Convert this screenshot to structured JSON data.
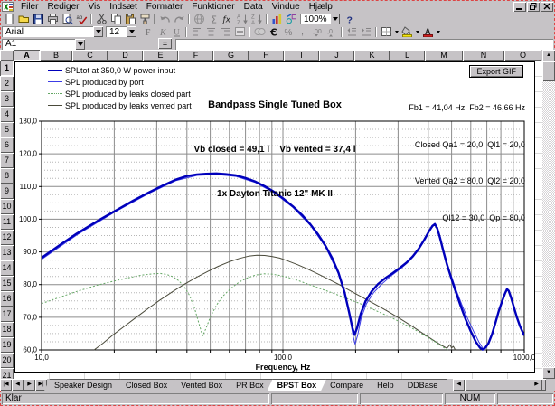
{
  "menu": {
    "items": [
      "Filer",
      "Rediger",
      "Vis",
      "Indsæt",
      "Formater",
      "Funktioner",
      "Data",
      "Vindue",
      "Hjælp"
    ]
  },
  "window_controls": [
    "minimize",
    "restore",
    "close"
  ],
  "standard_toolbar": {
    "zoom_value": "100%",
    "buttons": [
      {
        "id": "new-workbook",
        "icon": "new-document",
        "disabled": false
      },
      {
        "id": "open",
        "icon": "open-folder",
        "disabled": false
      },
      {
        "id": "save",
        "icon": "save-disk",
        "disabled": false
      },
      {
        "id": "print",
        "icon": "print",
        "disabled": false
      },
      {
        "id": "print-preview",
        "icon": "print-preview",
        "disabled": false
      },
      {
        "id": "spelling",
        "icon": "spelling",
        "disabled": false
      },
      {
        "id": "sep1",
        "sep": true
      },
      {
        "id": "cut",
        "icon": "cut",
        "disabled": false
      },
      {
        "id": "copy",
        "icon": "copy",
        "disabled": false
      },
      {
        "id": "paste",
        "icon": "paste",
        "disabled": false
      },
      {
        "id": "format-painter",
        "icon": "format-painter",
        "disabled": false
      },
      {
        "id": "sep2",
        "sep": true
      },
      {
        "id": "undo",
        "icon": "undo",
        "disabled": true
      },
      {
        "id": "redo",
        "icon": "redo",
        "disabled": true
      },
      {
        "id": "sep3",
        "sep": true
      },
      {
        "id": "insert-hyperlink",
        "icon": "web",
        "disabled": true
      },
      {
        "id": "autosum",
        "icon": "autosum",
        "disabled": true
      },
      {
        "id": "paste-function",
        "icon": "function",
        "disabled": false
      },
      {
        "id": "sort-ascending",
        "icon": "sort-asc",
        "disabled": true
      },
      {
        "id": "sort-descending",
        "icon": "sort-desc",
        "disabled": true
      },
      {
        "id": "sep4",
        "sep": true
      },
      {
        "id": "chart-wizard",
        "icon": "chart-wizard",
        "disabled": false
      },
      {
        "id": "drawing",
        "icon": "drawing",
        "disabled": false
      },
      {
        "id": "zoom",
        "zoom_combo": true
      },
      {
        "id": "help",
        "icon": "help",
        "disabled": false
      }
    ]
  },
  "formatting_toolbar": {
    "font_name": "Arial",
    "font_size": "12",
    "buttons": [
      {
        "id": "bold",
        "icon": "bold",
        "disabled": true
      },
      {
        "id": "italic",
        "icon": "italic",
        "disabled": true
      },
      {
        "id": "underline",
        "icon": "underline",
        "disabled": true
      },
      {
        "id": "sep1",
        "sep": true
      },
      {
        "id": "align-left",
        "icon": "align-left",
        "disabled": true
      },
      {
        "id": "align-center",
        "icon": "align-center",
        "disabled": true
      },
      {
        "id": "align-right",
        "icon": "align-right",
        "disabled": true
      },
      {
        "id": "merge-center",
        "icon": "merge-center",
        "disabled": true
      },
      {
        "id": "sep2",
        "sep": true
      },
      {
        "id": "currency",
        "icon": "currency",
        "disabled": true
      },
      {
        "id": "euro",
        "icon": "euro",
        "disabled": false
      },
      {
        "id": "percent",
        "icon": "percent",
        "disabled": true
      },
      {
        "id": "comma-style",
        "icon": "comma",
        "disabled": true
      },
      {
        "id": "increase-decimal",
        "icon": "inc-decimal",
        "disabled": true
      },
      {
        "id": "decrease-decimal",
        "icon": "dec-decimal",
        "disabled": true
      },
      {
        "id": "sep3",
        "sep": true
      },
      {
        "id": "decrease-indent",
        "icon": "dec-indent",
        "disabled": true
      },
      {
        "id": "increase-indent",
        "icon": "inc-indent",
        "disabled": true
      },
      {
        "id": "sep4",
        "sep": true
      },
      {
        "id": "borders",
        "icon": "borders",
        "disabled": false,
        "dropdown": true
      },
      {
        "id": "fill-color",
        "icon": "fill-color",
        "disabled": false,
        "dropdown": true
      },
      {
        "id": "font-color",
        "icon": "font-color",
        "disabled": false,
        "dropdown": true
      }
    ]
  },
  "formula_bar": {
    "name_box": "A1",
    "formula_value": ""
  },
  "sheet": {
    "column_headers": [
      "A",
      "B",
      "C",
      "D",
      "E",
      "F",
      "G",
      "H",
      "I",
      "J",
      "K",
      "L",
      "M",
      "N",
      "O"
    ],
    "row_headers": [
      "1",
      "2",
      "3",
      "4",
      "5",
      "6",
      "7",
      "8",
      "9",
      "10",
      "11",
      "12",
      "13",
      "14",
      "15",
      "16",
      "17",
      "18",
      "19",
      "20",
      "21"
    ],
    "active_column": "A",
    "active_row": "1"
  },
  "chart": {
    "title_lines": [
      "Bandpass Single Tuned Box",
      "Vb closed = 49,1 l    Vb vented = 37,4 l",
      "1x Dayton Titanic 12\" MK II"
    ],
    "params_lines": [
      "Fb1 = 41,04 Hz  Fb2 = 46,66 Hz",
      "Closed Qa1 = 20,0  Ql1 = 20,0",
      "Vented Qa2 = 80,0  Ql2 = 20,0",
      "Ql12 = 30,0  Qp = 80,0"
    ],
    "export_button_label": "Export GIF"
  },
  "chart_data": {
    "type": "line",
    "x_scale": "log",
    "xlabel": "Frequency, Hz",
    "xlim": [
      10,
      1000
    ],
    "ylim": [
      60,
      130
    ],
    "y_tick_step": 10,
    "y_minor_step": 2.5,
    "grid": true,
    "legend_position": "top-left",
    "x_ticks": [
      {
        "value": 10,
        "label": "10,0"
      },
      {
        "value": 100,
        "label": "100,0"
      },
      {
        "value": 1000,
        "label": "1000,0"
      }
    ],
    "y_ticks": [
      {
        "value": 130,
        "label": "130,0"
      },
      {
        "value": 120,
        "label": "120,0"
      },
      {
        "value": 110,
        "label": "110,0"
      },
      {
        "value": 100,
        "label": "100,0"
      },
      {
        "value": 90,
        "label": "90,0"
      },
      {
        "value": 80,
        "label": "80,0"
      },
      {
        "value": 70,
        "label": "70,0"
      },
      {
        "value": 60,
        "label": "60,0"
      }
    ],
    "series": [
      {
        "name": "SPL produced by leaks vented part",
        "color": "#4a4a3a",
        "width": 1,
        "dash": "",
        "points": [
          [
            16.5,
            60
          ],
          [
            18,
            62.1
          ],
          [
            20,
            64.9
          ],
          [
            22,
            67.2
          ],
          [
            25,
            70.3
          ],
          [
            28,
            73
          ],
          [
            31,
            75.3
          ],
          [
            35,
            77.9
          ],
          [
            39,
            80.1
          ],
          [
            44,
            82.3
          ],
          [
            49,
            84.1
          ],
          [
            54,
            85.6
          ],
          [
            60,
            87
          ],
          [
            66,
            88
          ],
          [
            72,
            88.7
          ],
          [
            78,
            89
          ],
          [
            84,
            88.9
          ],
          [
            90,
            88.6
          ],
          [
            97,
            88.1
          ],
          [
            105,
            87.2
          ],
          [
            115,
            86.1
          ],
          [
            127,
            84.7
          ],
          [
            140,
            83.2
          ],
          [
            155,
            81.6
          ],
          [
            172,
            79.9
          ],
          [
            190,
            78.1
          ],
          [
            212,
            76.2
          ],
          [
            238,
            74.2
          ],
          [
            268,
            72.1
          ],
          [
            302,
            69.8
          ],
          [
            342,
            67.3
          ],
          [
            385,
            64.8
          ],
          [
            425,
            62.7
          ],
          [
            455,
            61.4
          ],
          [
            478,
            60.5
          ],
          [
            492,
            61.6
          ],
          [
            500,
            60.6
          ],
          [
            508,
            61.1
          ],
          [
            518,
            60
          ]
        ]
      },
      {
        "name": "SPL produced by leaks closed part",
        "color": "#63a663",
        "width": 1,
        "dash": "2 2",
        "points": [
          [
            10,
            74.2
          ],
          [
            12,
            76.2
          ],
          [
            14,
            77.9
          ],
          [
            17,
            79.8
          ],
          [
            20,
            81.1
          ],
          [
            23,
            82.1
          ],
          [
            26,
            82.9
          ],
          [
            29,
            83.3
          ],
          [
            31,
            83.4
          ],
          [
            33,
            83.1
          ],
          [
            35,
            82.4
          ],
          [
            37,
            81.2
          ],
          [
            39,
            79.4
          ],
          [
            41,
            76.7
          ],
          [
            43,
            72.9
          ],
          [
            45,
            67.8
          ],
          [
            46.5,
            64.3
          ],
          [
            48,
            66.6
          ],
          [
            50,
            70
          ],
          [
            53,
            73.7
          ],
          [
            57,
            76.8
          ],
          [
            61,
            78.9
          ],
          [
            66,
            80.8
          ],
          [
            71,
            82
          ],
          [
            77,
            82.9
          ],
          [
            83,
            83.3
          ],
          [
            90,
            83.2
          ],
          [
            97,
            82.8
          ],
          [
            105,
            82.2
          ],
          [
            115,
            81.3
          ],
          [
            130,
            79.9
          ],
          [
            145,
            78.6
          ],
          [
            165,
            77.1
          ],
          [
            185,
            75.7
          ],
          [
            210,
            74.1
          ],
          [
            240,
            72.2
          ],
          [
            275,
            70.2
          ],
          [
            315,
            68.1
          ],
          [
            360,
            65.8
          ],
          [
            410,
            63.3
          ],
          [
            450,
            61.4
          ],
          [
            475,
            60.2
          ],
          [
            482,
            60
          ]
        ]
      },
      {
        "name": "SPL produced by port",
        "color": "#3c3ce6",
        "width": 1,
        "dash": "",
        "points": [
          [
            10,
            87.7
          ],
          [
            14,
            95.2
          ],
          [
            20,
            102.1
          ],
          [
            28,
            108
          ],
          [
            36,
            111.8
          ],
          [
            44,
            113.4
          ],
          [
            53,
            113.7
          ],
          [
            64,
            113.1
          ],
          [
            77,
            111.2
          ],
          [
            92,
            108.1
          ],
          [
            110,
            103.6
          ],
          [
            130,
            98.1
          ],
          [
            150,
            91.6
          ],
          [
            170,
            83.2
          ],
          [
            181,
            76.8
          ],
          [
            189,
            70.5
          ],
          [
            195,
            64.5
          ],
          [
            199,
            61.8
          ],
          [
            204,
            64.5
          ],
          [
            211,
            69.8
          ],
          [
            222,
            74.2
          ],
          [
            238,
            77.6
          ],
          [
            258,
            80.3
          ],
          [
            282,
            82.8
          ],
          [
            308,
            84.9
          ],
          [
            335,
            87.3
          ],
          [
            362,
            90.3
          ],
          [
            390,
            94
          ],
          [
            408,
            96.8
          ],
          [
            420,
            98.2
          ],
          [
            430,
            98.1
          ],
          [
            442,
            95.9
          ],
          [
            456,
            92.3
          ],
          [
            474,
            87.8
          ],
          [
            495,
            83.3
          ],
          [
            520,
            78.7
          ],
          [
            550,
            74
          ],
          [
            582,
            69.7
          ],
          [
            615,
            65.9
          ],
          [
            648,
            62.5
          ],
          [
            675,
            60.4
          ],
          [
            688,
            60
          ]
        ]
      },
      {
        "name": "SPLtot at 350,0 W power input",
        "color": "#0000bb",
        "width": 2.4,
        "dash": "",
        "points": [
          [
            10,
            88.2
          ],
          [
            12,
            92.3
          ],
          [
            14,
            95.6
          ],
          [
            17,
            99.4
          ],
          [
            20,
            102.4
          ],
          [
            24,
            105.7
          ],
          [
            28,
            108.3
          ],
          [
            32,
            110.4
          ],
          [
            36,
            112.1
          ],
          [
            40,
            113.2
          ],
          [
            44,
            113.7
          ],
          [
            48,
            113.9
          ],
          [
            53,
            114
          ],
          [
            58,
            113.8
          ],
          [
            64,
            113.4
          ],
          [
            70,
            112.6
          ],
          [
            77,
            111.5
          ],
          [
            84,
            110.1
          ],
          [
            92,
            108.4
          ],
          [
            100,
            106.4
          ],
          [
            110,
            103.9
          ],
          [
            120,
            101.3
          ],
          [
            130,
            98.4
          ],
          [
            140,
            95.3
          ],
          [
            150,
            91.9
          ],
          [
            160,
            88.1
          ],
          [
            170,
            83.6
          ],
          [
            180,
            77.6
          ],
          [
            188,
            71.5
          ],
          [
            194,
            66.8
          ],
          [
            198,
            64.6
          ],
          [
            203,
            66.8
          ],
          [
            210,
            71
          ],
          [
            220,
            74.9
          ],
          [
            233,
            77.9
          ],
          [
            248,
            80.2
          ],
          [
            265,
            81.9
          ],
          [
            285,
            83.5
          ],
          [
            305,
            85.1
          ],
          [
            325,
            86.7
          ],
          [
            345,
            88.6
          ],
          [
            365,
            90.9
          ],
          [
            385,
            93.7
          ],
          [
            403,
            96.3
          ],
          [
            416,
            97.9
          ],
          [
            426,
            98.5
          ],
          [
            436,
            97.2
          ],
          [
            448,
            94.2
          ],
          [
            462,
            90.2
          ],
          [
            478,
            86.2
          ],
          [
            498,
            82
          ],
          [
            520,
            77.8
          ],
          [
            545,
            73.5
          ],
          [
            572,
            69.3
          ],
          [
            600,
            65.7
          ],
          [
            630,
            62.5
          ],
          [
            655,
            60.7
          ],
          [
            672,
            60.1
          ],
          [
            690,
            60.7
          ],
          [
            710,
            62
          ],
          [
            735,
            64.8
          ],
          [
            760,
            68.4
          ],
          [
            785,
            72
          ],
          [
            810,
            75
          ],
          [
            832,
            77.3
          ],
          [
            848,
            78.6
          ],
          [
            862,
            78.1
          ],
          [
            882,
            76
          ],
          [
            905,
            73.2
          ],
          [
            932,
            70
          ],
          [
            962,
            67.1
          ],
          [
            1000,
            64.4
          ]
        ]
      }
    ],
    "legend": [
      {
        "label": "SPLtot at 350,0 W power input",
        "color": "#0000bb",
        "style": "solid",
        "width": 2
      },
      {
        "label": "SPL produced by port",
        "color": "#3c3ce6",
        "style": "solid",
        "width": 1
      },
      {
        "label": "SPL produced by leaks closed part",
        "color": "#63a663",
        "style": "dotted",
        "width": 1
      },
      {
        "label": "SPL produced by leaks vented part",
        "color": "#4a4a3a",
        "style": "solid",
        "width": 1
      }
    ]
  },
  "sheet_tabs": {
    "items": [
      "Speaker Design",
      "Closed Box",
      "Vented Box",
      "PR Box",
      "BPST Box",
      "Compare",
      "Help",
      "DDBase"
    ],
    "active": "BPST Box"
  },
  "status_bar": {
    "mode": "Klar",
    "num_lock": "NUM"
  }
}
